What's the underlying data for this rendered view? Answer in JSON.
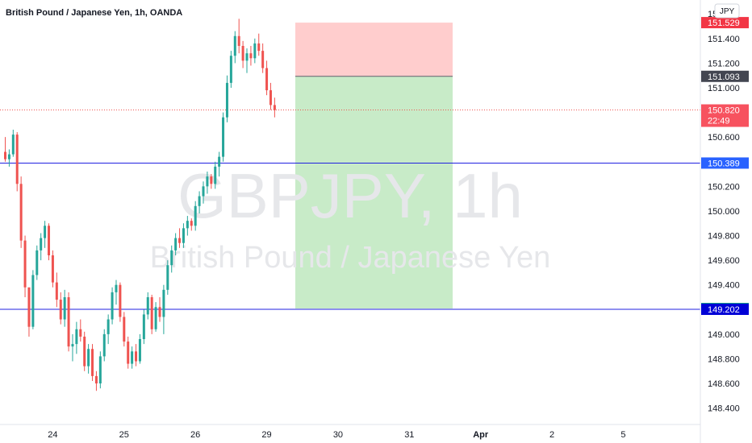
{
  "header": {
    "title": "British Pound / Japanese Yen, 1h, OANDA"
  },
  "watermark": {
    "symbol": "GBPJPY, 1h",
    "name": "British Pound / Japanese Yen"
  },
  "currency_button": {
    "label": "JPY"
  },
  "chart_data": {
    "type": "candlestick",
    "title": "British Pound / Japanese Yen, 1h, OANDA",
    "xlabel": "",
    "ylabel": "",
    "ylim": [
      148.28,
      151.68
    ],
    "y_ticks": [
      {
        "value": 148.4,
        "label": "148.400"
      },
      {
        "value": 148.6,
        "label": "148.600"
      },
      {
        "value": 148.8,
        "label": "148.800"
      },
      {
        "value": 149.0,
        "label": "149.000"
      },
      {
        "value": 149.4,
        "label": "149.400"
      },
      {
        "value": 149.6,
        "label": "149.600"
      },
      {
        "value": 149.8,
        "label": "149.800"
      },
      {
        "value": 150.0,
        "label": "150.000"
      },
      {
        "value": 150.2,
        "label": "150.200"
      },
      {
        "value": 150.6,
        "label": "150.600"
      },
      {
        "value": 151.0,
        "label": "151.000"
      },
      {
        "value": 151.2,
        "label": "151.200"
      },
      {
        "value": 151.4,
        "label": "151.400"
      },
      {
        "value": 151.6,
        "label": "151.600"
      }
    ],
    "x_ticks": [
      {
        "label": "24",
        "bar": 12
      },
      {
        "label": "25",
        "bar": 30
      },
      {
        "label": "26",
        "bar": 48
      },
      {
        "label": "29",
        "bar": 66
      },
      {
        "label": "30",
        "bar": 84
      },
      {
        "label": "31",
        "bar": 102
      },
      {
        "label": "Apr",
        "bar": 120,
        "bold": true
      },
      {
        "label": "2",
        "bar": 138
      },
      {
        "label": "5",
        "bar": 156
      }
    ],
    "candles_ohlc": [
      [
        150.48,
        150.6,
        150.4,
        150.42
      ],
      [
        150.42,
        150.5,
        150.36,
        150.46
      ],
      [
        150.46,
        150.66,
        150.44,
        150.62
      ],
      [
        150.62,
        150.64,
        150.16,
        150.22
      ],
      [
        150.22,
        150.28,
        149.7,
        149.76
      ],
      [
        149.76,
        149.8,
        149.3,
        149.38
      ],
      [
        149.38,
        149.1,
        148.98,
        149.06
      ],
      [
        149.06,
        149.52,
        149.04,
        149.48
      ],
      [
        149.48,
        149.72,
        149.44,
        149.68
      ],
      [
        149.68,
        149.82,
        149.6,
        149.78
      ],
      [
        149.78,
        149.92,
        149.7,
        149.88
      ],
      [
        149.88,
        149.9,
        149.6,
        149.64
      ],
      [
        149.64,
        149.68,
        149.38,
        149.42
      ],
      [
        149.42,
        149.5,
        149.22,
        149.28
      ],
      [
        149.28,
        149.34,
        149.08,
        149.12
      ],
      [
        149.12,
        149.36,
        149.06,
        149.3
      ],
      [
        149.3,
        149.34,
        148.86,
        148.9
      ],
      [
        148.9,
        149.0,
        148.78,
        148.92
      ],
      [
        148.92,
        149.1,
        148.84,
        149.04
      ],
      [
        149.04,
        149.12,
        148.94,
        148.98
      ],
      [
        148.98,
        149.02,
        148.7,
        148.74
      ],
      [
        148.74,
        148.92,
        148.68,
        148.88
      ],
      [
        148.88,
        148.92,
        148.62,
        148.66
      ],
      [
        148.66,
        148.7,
        148.54,
        148.6
      ],
      [
        148.6,
        148.86,
        148.56,
        148.82
      ],
      [
        148.82,
        149.04,
        148.78,
        149.0
      ],
      [
        149.0,
        149.16,
        148.92,
        149.12
      ],
      [
        149.12,
        149.38,
        149.08,
        149.34
      ],
      [
        149.34,
        149.44,
        149.24,
        149.4
      ],
      [
        149.4,
        149.42,
        149.1,
        149.14
      ],
      [
        149.14,
        149.18,
        148.9,
        148.94
      ],
      [
        148.94,
        148.98,
        148.72,
        148.76
      ],
      [
        148.76,
        148.9,
        148.72,
        148.86
      ],
      [
        148.86,
        148.92,
        148.74,
        148.78
      ],
      [
        148.78,
        149.0,
        148.76,
        148.96
      ],
      [
        148.96,
        149.2,
        148.92,
        149.16
      ],
      [
        149.16,
        149.34,
        149.12,
        149.3
      ],
      [
        149.3,
        149.32,
        149.0,
        149.04
      ],
      [
        149.04,
        149.26,
        149.02,
        149.22
      ],
      [
        149.22,
        149.3,
        149.1,
        149.14
      ],
      [
        149.14,
        149.4,
        149.0,
        149.36
      ],
      [
        149.36,
        149.6,
        149.32,
        149.56
      ],
      [
        149.56,
        149.72,
        149.5,
        149.68
      ],
      [
        149.68,
        149.82,
        149.64,
        149.78
      ],
      [
        149.78,
        149.86,
        149.7,
        149.74
      ],
      [
        149.74,
        149.9,
        149.7,
        149.86
      ],
      [
        149.86,
        149.96,
        149.8,
        149.92
      ],
      [
        149.92,
        149.94,
        149.84,
        149.88
      ],
      [
        149.88,
        150.08,
        149.84,
        150.04
      ],
      [
        150.04,
        150.16,
        149.98,
        150.12
      ],
      [
        150.12,
        150.24,
        150.06,
        150.2
      ],
      [
        150.2,
        150.32,
        150.14,
        150.28
      ],
      [
        150.28,
        150.3,
        150.18,
        150.22
      ],
      [
        150.22,
        150.4,
        150.18,
        150.36
      ],
      [
        150.36,
        150.48,
        150.28,
        150.44
      ],
      [
        150.44,
        150.8,
        150.4,
        150.76
      ],
      [
        150.76,
        151.1,
        150.72,
        151.04
      ],
      [
        151.04,
        151.3,
        151.0,
        151.26
      ],
      [
        151.26,
        151.46,
        151.2,
        151.42
      ],
      [
        151.42,
        151.56,
        151.28,
        151.34
      ],
      [
        151.34,
        151.38,
        151.16,
        151.22
      ],
      [
        151.22,
        151.32,
        151.12,
        151.28
      ],
      [
        151.28,
        151.34,
        151.18,
        151.24
      ],
      [
        151.24,
        151.4,
        151.2,
        151.36
      ],
      [
        151.36,
        151.44,
        151.26,
        151.3
      ],
      [
        151.3,
        151.36,
        151.12,
        151.16
      ],
      [
        151.16,
        151.22,
        150.94,
        150.98
      ],
      [
        150.98,
        151.04,
        150.82,
        150.86
      ],
      [
        150.86,
        150.92,
        150.76,
        150.82
      ]
    ],
    "position": {
      "entry": 151.093,
      "stop": 151.529,
      "target": 149.208
    },
    "horizontal_lines": [
      150.389,
      149.202
    ],
    "last_price": 150.82,
    "countdown": "22:49",
    "price_tags": [
      {
        "value": 151.529,
        "label": "151.529",
        "color": "#f23645"
      },
      {
        "value": 151.093,
        "label": "151.093",
        "color": "#434651"
      },
      {
        "value": 150.389,
        "label": "150.389",
        "color": "#2962ff"
      },
      {
        "value": 149.208,
        "label": "149.208",
        "color": "#089981"
      },
      {
        "value": 149.202,
        "label": "149.202",
        "color": "#0000d6"
      }
    ],
    "colors": {
      "up": "#26a69a",
      "down": "#ef5350",
      "line": "#2020e0",
      "profit_zone": "#c8ebc8",
      "loss_zone": "#ffcdcd",
      "last_price_tag": "#f7525f"
    }
  }
}
